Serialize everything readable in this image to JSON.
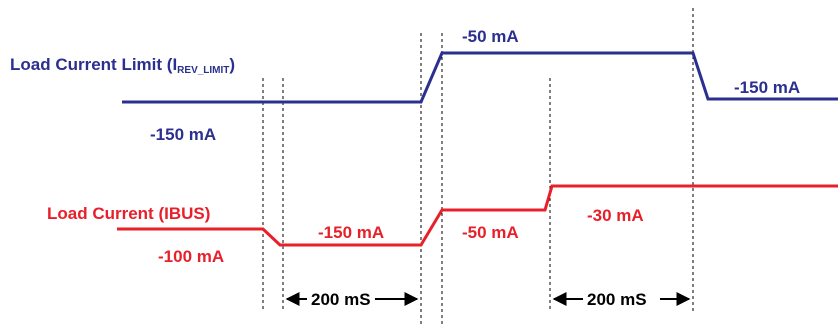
{
  "colors": {
    "limit_trace": "#2b2f8f",
    "load_trace": "#e8202a",
    "guides": "#000000",
    "background": "#ffffff"
  },
  "limit": {
    "label_main": "Load Current Limit (I",
    "label_sub": "REV_LIMIT",
    "label_close": ")",
    "values": {
      "initial": "-150 mA",
      "raised": "-50 mA",
      "final": "-150 mA"
    }
  },
  "load": {
    "label": "Load Current (IBUS)",
    "values": {
      "initial": "-100 mA",
      "second": "-150 mA",
      "third": "-50 mA",
      "fourth": "-30 mA"
    }
  },
  "intervals": {
    "first": "200 mS",
    "second": "200 mS"
  }
}
